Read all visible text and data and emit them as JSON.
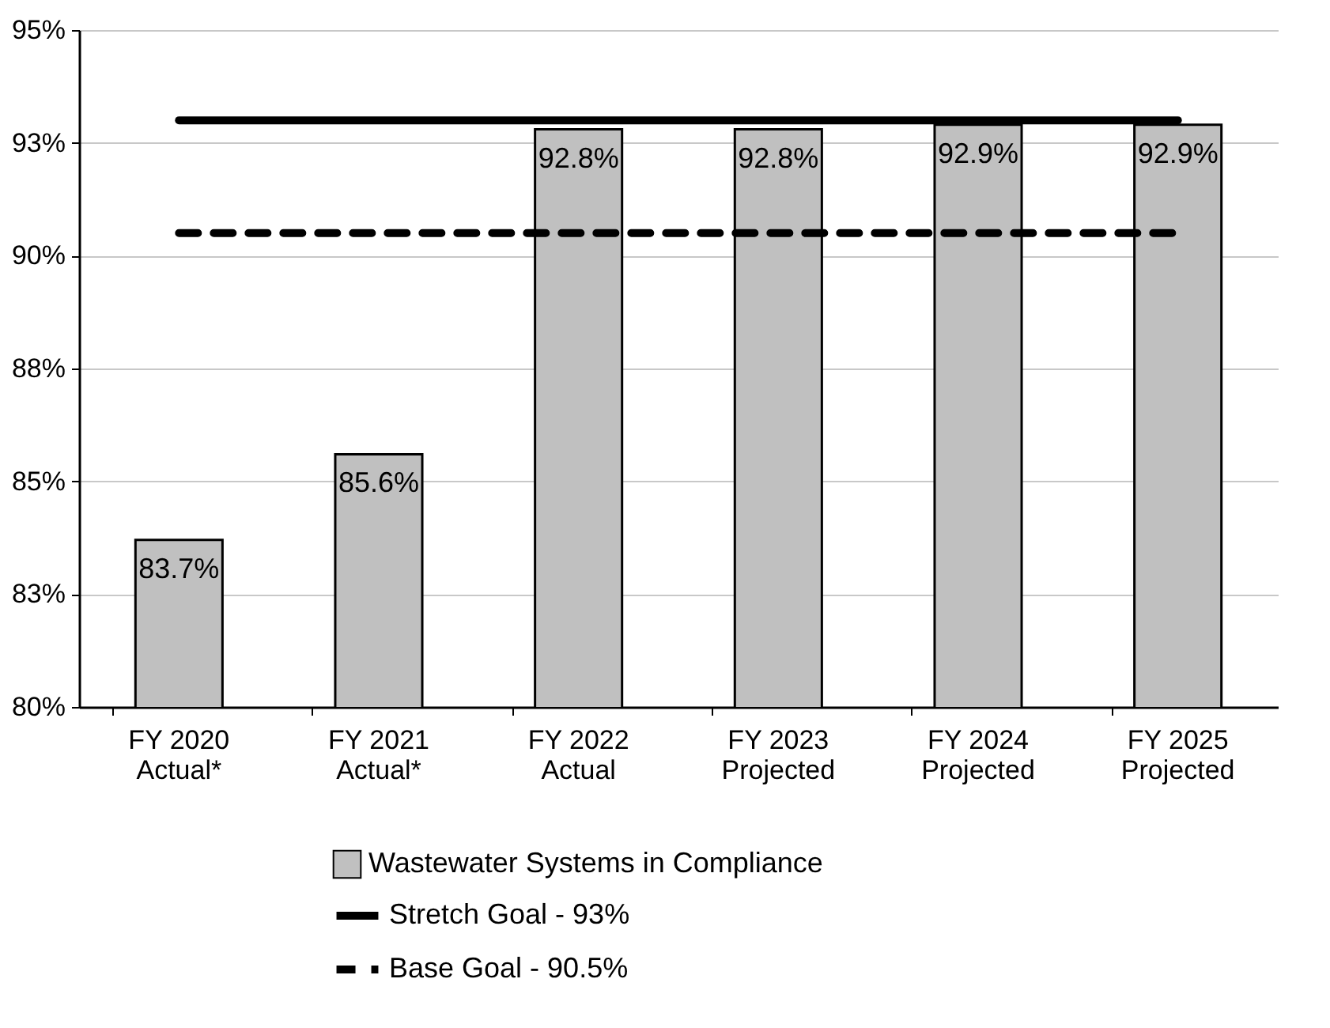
{
  "chart_data": {
    "type": "bar",
    "categories": [
      "FY 2020\nActual*",
      "FY 2021\nActual*",
      "FY 2022\nActual",
      "FY 2023\nProjected",
      "FY 2024\nProjected",
      "FY 2025\nProjected"
    ],
    "series": [
      {
        "name": "Wastewater Systems in Compliance",
        "color": "#c0c0c0",
        "values": [
          83.7,
          85.6,
          92.8,
          92.8,
          92.9,
          92.9
        ],
        "value_labels": [
          "83.7%",
          "85.6%",
          "92.8%",
          "92.8%",
          "92.9%",
          "92.9%"
        ]
      }
    ],
    "ylim": [
      80,
      95
    ],
    "yticks": [
      {
        "value": 80,
        "label": "80%"
      },
      {
        "value": 82.5,
        "label": "83%"
      },
      {
        "value": 85,
        "label": "85%"
      },
      {
        "value": 87.5,
        "label": "88%"
      },
      {
        "value": 90,
        "label": "90%"
      },
      {
        "value": 92.5,
        "label": "93%"
      },
      {
        "value": 95,
        "label": "95%"
      }
    ],
    "ref_lines": [
      {
        "axis": "y",
        "value": 93,
        "label": "Stretch Goal - 93%",
        "color": "#000000",
        "line_style": "solid"
      },
      {
        "axis": "y",
        "value": 90.5,
        "label": "Base Goal - 90.5%",
        "color": "#000000",
        "line_style": "dashed"
      }
    ],
    "grid": "y",
    "legend": "bottom"
  }
}
